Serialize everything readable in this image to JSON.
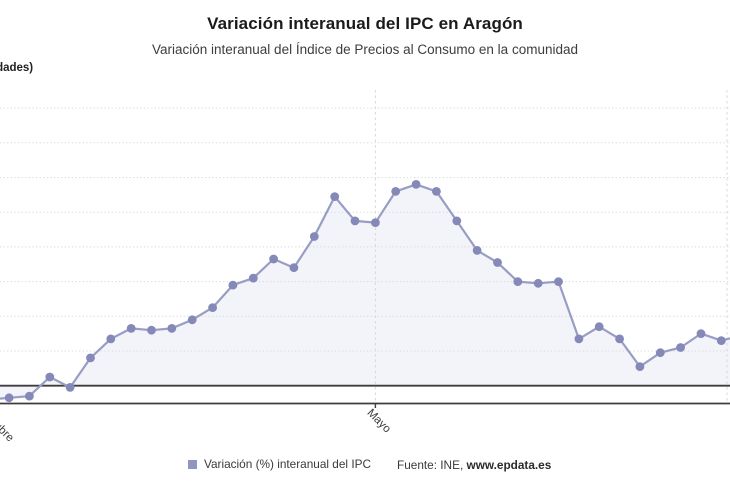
{
  "header": {
    "title": "Variación interanual del IPC en Aragón",
    "subtitle": "Variación interanual del Índice de Precios al Consumo en la comunidad",
    "units_label": "(unidades)"
  },
  "legend": {
    "series_label": "Variación (%) interanual del IPC",
    "marker_color": "#9295c1",
    "source_prefix": "Fuente: INE,",
    "source_link": "www.epdata.es"
  },
  "chart_data": {
    "type": "line",
    "title": "Variación interanual del IPC en Aragón",
    "ylabel": "(unidades)",
    "series": [
      {
        "name": "Variación (%) interanual del IPC",
        "values": [
          -0.8,
          -0.7,
          -0.6,
          0.5,
          -0.1,
          1.6,
          2.7,
          3.3,
          3.2,
          3.3,
          3.8,
          4.5,
          5.8,
          6.2,
          7.3,
          6.8,
          8.6,
          10.9,
          9.5,
          9.4,
          11.2,
          11.6,
          11.2,
          9.5,
          7.8,
          7.1,
          6.0,
          5.9,
          6.0,
          2.7,
          3.4,
          2.7,
          1.1,
          1.9,
          2.2,
          3.0,
          2.6,
          2.9
        ]
      }
    ],
    "x_ticks": [
      {
        "index": 0,
        "label": "Octubre"
      },
      {
        "index": 19,
        "label": "Mayo"
      }
    ],
    "ylim": [
      -1.0,
      17.0
    ],
    "y_grid_step": 2,
    "zero_line": true,
    "grid": "dotted horizontal every 2 units, dashed vertical at month ticks",
    "legend_position": "bottom",
    "colors": {
      "line": "#999dc4",
      "dot": "#8489b8",
      "area": "#f3f3fa",
      "grid": "#d8d8d8",
      "axis_line": "#3d3d3d",
      "tick_label": "#3a3a3a"
    }
  }
}
